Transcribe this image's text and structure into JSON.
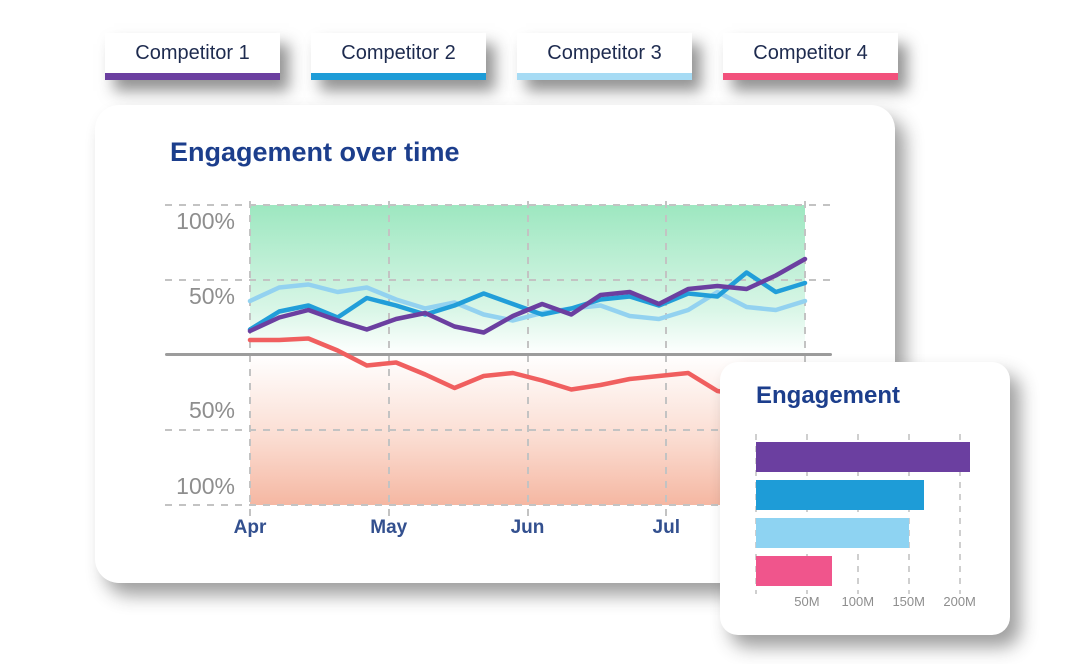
{
  "tabs": {
    "items": [
      {
        "label": "Competitor 1",
        "color": "#6B3FA0"
      },
      {
        "label": "Competitor 2",
        "color": "#1E9CD7"
      },
      {
        "label": "Competitor 3",
        "color": "#A6DBF4"
      },
      {
        "label": "Competitor 4",
        "color": "#F2517C"
      }
    ]
  },
  "chart_data": [
    {
      "type": "line",
      "title": "Engagement over time",
      "x_tick_labels": [
        "Apr",
        "May",
        "Jun",
        "Jul"
      ],
      "y_tick_labels": [
        "100%",
        "50%",
        "50%",
        "100%"
      ],
      "ylim": [
        -100,
        100
      ],
      "y_unit": "%",
      "grid": true,
      "zero_baseline": true,
      "positive_region_color": "#9DE7C0",
      "negative_region_color": "#F5B7A2",
      "series": [
        {
          "name": "Competitor 1",
          "color": "#6B3FA0",
          "values": [
            16,
            25,
            30,
            23,
            17,
            24,
            28,
            19,
            15,
            26,
            34,
            27,
            40,
            42,
            34,
            44,
            46,
            44,
            53,
            64
          ]
        },
        {
          "name": "Competitor 2",
          "color": "#219ED9",
          "values": [
            17,
            29,
            33,
            25,
            38,
            33,
            27,
            33,
            41,
            34,
            27,
            31,
            37,
            39,
            33,
            41,
            39,
            55,
            42,
            48
          ]
        },
        {
          "name": "Competitor 3",
          "color": "#93D2F0",
          "values": [
            36,
            45,
            47,
            42,
            45,
            37,
            31,
            35,
            27,
            23,
            28,
            31,
            33,
            26,
            24,
            30,
            42,
            32,
            30,
            36
          ]
        },
        {
          "name": "Competitor 4",
          "color": "#F05F5F",
          "values": [
            10,
            10,
            11,
            3,
            -7,
            -5,
            -13,
            -22,
            -14,
            -12,
            -17,
            -23,
            -20,
            -16,
            -14,
            -12,
            -24,
            -27,
            -25,
            -27
          ]
        }
      ]
    },
    {
      "type": "bar",
      "title": "Engagement",
      "orientation": "horizontal",
      "categories": [
        "Competitor 1",
        "Competitor 2",
        "Competitor 3",
        "Competitor 4"
      ],
      "values": [
        210,
        165,
        150,
        75
      ],
      "value_unit": "M",
      "colors": [
        "#6B3FA0",
        "#1E9CD7",
        "#8ED3F2",
        "#F0558C"
      ],
      "x_ticks": [
        50,
        100,
        150,
        200
      ],
      "x_tick_labels": [
        "50M",
        "100M",
        "150M",
        "200M"
      ],
      "xlim": [
        0,
        220
      ],
      "grid": true
    }
  ]
}
